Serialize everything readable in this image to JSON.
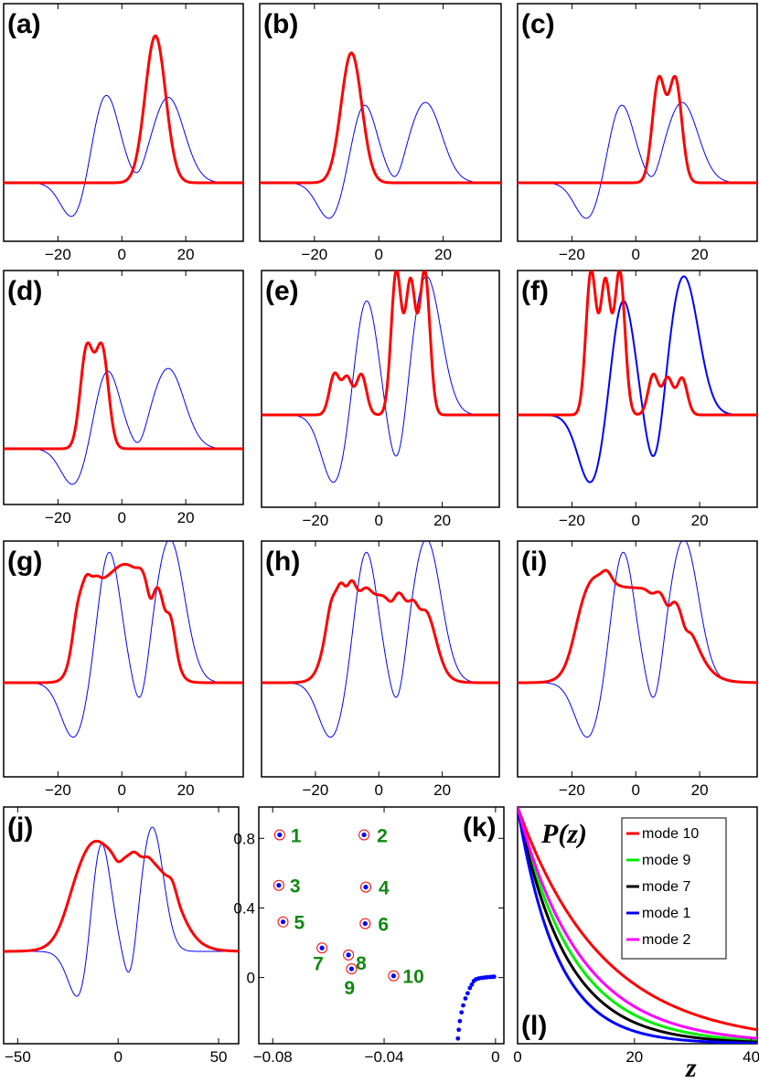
{
  "chart_data": [
    {
      "type": "line",
      "panel_label": "(a)",
      "xlim": [
        -37,
        38
      ],
      "xticks": [
        -20,
        0,
        20
      ],
      "tick_labels": [
        "−20",
        "0",
        "20"
      ],
      "series": [
        {
          "color": "#0000ff",
          "width": 1.0,
          "profile": "blue_a"
        },
        {
          "color": "#ff0000",
          "width": 3.0,
          "peaks": [
            [
              10.5,
              0.86,
              3.2
            ]
          ]
        }
      ],
      "ylim": [
        -0.3,
        1.0
      ]
    },
    {
      "type": "line",
      "panel_label": "(b)",
      "xlim": [
        -37,
        38
      ],
      "xticks": [
        -20,
        0,
        20
      ],
      "tick_labels": [
        "−20",
        "0",
        "20"
      ],
      "series": [
        {
          "color": "#0000ff",
          "width": 1.0,
          "profile": "blue_b"
        },
        {
          "color": "#ff0000",
          "width": 3.0,
          "peaks": [
            [
              -8.5,
              0.76,
              3.2
            ]
          ]
        }
      ],
      "ylim": [
        -0.3,
        1.0
      ]
    },
    {
      "type": "line",
      "panel_label": "(c)",
      "xlim": [
        -37,
        38
      ],
      "xticks": [
        -20,
        0,
        20
      ],
      "tick_labels": [
        "−20",
        "0",
        "20"
      ],
      "series": [
        {
          "color": "#0000ff",
          "width": 1.0,
          "profile": "blue_b"
        },
        {
          "color": "#ff0000",
          "width": 3.0,
          "peaks": [
            [
              7.2,
              0.6,
              2.0
            ],
            [
              12.4,
              0.6,
              2.0
            ]
          ]
        }
      ],
      "ylim": [
        -0.3,
        1.0
      ]
    },
    {
      "type": "line",
      "panel_label": "(d)",
      "xlim": [
        -37,
        38
      ],
      "xticks": [
        -20,
        0,
        20
      ],
      "tick_labels": [
        "−20",
        "0",
        "20"
      ],
      "series": [
        {
          "color": "#0000ff",
          "width": 1.0,
          "profile": "blue_b"
        },
        {
          "color": "#ff0000",
          "width": 3.0,
          "peaks": [
            [
              -11,
              0.58,
              2.0
            ],
            [
              -6.2,
              0.58,
              2.0
            ]
          ]
        }
      ],
      "ylim": [
        -0.3,
        1.0
      ]
    },
    {
      "type": "line",
      "panel_label": "(e)",
      "xlim": [
        -37,
        38
      ],
      "xticks": [
        -20,
        0,
        20
      ],
      "tick_labels": [
        "−20",
        "0",
        "20"
      ],
      "series": [
        {
          "color": "#0000ff",
          "width": 1.0,
          "profile": "blue_e"
        },
        {
          "color": "#ff0000",
          "width": 3.0,
          "peaks": [
            [
              5.5,
              0.78,
              1.6
            ],
            [
              10,
              0.72,
              1.6
            ],
            [
              14.5,
              0.78,
              1.6
            ],
            [
              -14,
              0.22,
              1.6
            ],
            [
              -10,
              0.2,
              1.6
            ],
            [
              -5.5,
              0.22,
              1.6
            ]
          ]
        }
      ],
      "ylim": [
        -0.3,
        1.0
      ]
    },
    {
      "type": "line",
      "panel_label": "(f)",
      "xlim": [
        -37,
        38
      ],
      "xticks": [
        -20,
        0,
        20
      ],
      "tick_labels": [
        "−20",
        "0",
        "20"
      ],
      "series": [
        {
          "color": "#0000ff",
          "width": 2.0,
          "profile": "blue_e"
        },
        {
          "color": "#ff0000",
          "width": 3.0,
          "peaks": [
            [
              -14,
              0.78,
              1.6
            ],
            [
              -9.5,
              0.72,
              1.6
            ],
            [
              -5,
              0.78,
              1.6
            ],
            [
              5.5,
              0.22,
              1.6
            ],
            [
              10,
              0.2,
              1.6
            ],
            [
              14.5,
              0.2,
              1.6
            ]
          ]
        }
      ],
      "ylim": [
        -0.3,
        1.0
      ]
    },
    {
      "type": "line",
      "panel_label": "(g)",
      "xlim": [
        -37,
        38
      ],
      "xticks": [
        -20,
        0,
        20
      ],
      "tick_labels": [
        "−20",
        "0",
        "20"
      ],
      "series": [
        {
          "color": "#0000ff",
          "width": 1.0,
          "profile": "blue_g"
        },
        {
          "color": "#ff0000",
          "width": 3.0,
          "profile": "red_g"
        }
      ],
      "ylim": [
        -0.3,
        1.0
      ]
    },
    {
      "type": "line",
      "panel_label": "(h)",
      "xlim": [
        -37,
        38
      ],
      "xticks": [
        -20,
        0,
        20
      ],
      "tick_labels": [
        "−20",
        "0",
        "20"
      ],
      "series": [
        {
          "color": "#0000ff",
          "width": 1.0,
          "profile": "blue_g"
        },
        {
          "color": "#ff0000",
          "width": 3.0,
          "profile": "red_h"
        }
      ],
      "ylim": [
        -0.3,
        1.0
      ]
    },
    {
      "type": "line",
      "panel_label": "(i)",
      "xlim": [
        -37,
        38
      ],
      "xticks": [
        -20,
        0,
        20
      ],
      "tick_labels": [
        "−20",
        "0",
        "20"
      ],
      "series": [
        {
          "color": "#0000ff",
          "width": 1.0,
          "profile": "blue_g"
        },
        {
          "color": "#ff0000",
          "width": 3.0,
          "profile": "red_i"
        }
      ],
      "ylim": [
        -0.3,
        1.0
      ]
    },
    {
      "type": "line",
      "panel_label": "(j)",
      "xlim": [
        -57,
        60
      ],
      "xticks": [
        -50,
        0,
        50
      ],
      "tick_labels": [
        "−50",
        "0",
        "50"
      ],
      "series": [
        {
          "color": "#0000ff",
          "width": 1.0,
          "profile": "blue_j"
        },
        {
          "color": "#ff0000",
          "width": 3.0,
          "profile": "red_j"
        }
      ],
      "ylim": [
        -0.3,
        1.0
      ]
    },
    {
      "type": "scatter",
      "panel_label": "(k)",
      "xlim": [
        -0.085,
        0.003
      ],
      "ylim": [
        -0.38,
        0.98
      ],
      "xticks": [
        -0.08,
        -0.04,
        0
      ],
      "xtick_labels": [
        "−0.08",
        "−0.04",
        "0"
      ],
      "yticks": [
        0,
        0.4,
        0.8
      ],
      "ytick_labels": [
        "0",
        "0.4",
        "0.8"
      ],
      "modes": [
        {
          "label": "1",
          "x": -0.0775,
          "y": 0.82
        },
        {
          "label": "2",
          "x": -0.0472,
          "y": 0.82
        },
        {
          "label": "3",
          "x": -0.0778,
          "y": 0.53
        },
        {
          "label": "4",
          "x": -0.0466,
          "y": 0.52
        },
        {
          "label": "5",
          "x": -0.0763,
          "y": 0.32
        },
        {
          "label": "6",
          "x": -0.0468,
          "y": 0.31
        },
        {
          "label": "7",
          "x": -0.0623,
          "y": 0.17
        },
        {
          "label": "8",
          "x": -0.0528,
          "y": 0.13
        },
        {
          "label": "9",
          "x": -0.0517,
          "y": 0.05
        },
        {
          "label": "10",
          "x": -0.0366,
          "y": 0.01
        }
      ],
      "continuum": [
        [
          -0.0135,
          -0.35
        ],
        [
          -0.0132,
          -0.3
        ],
        [
          -0.0128,
          -0.25
        ],
        [
          -0.0122,
          -0.2
        ],
        [
          -0.0116,
          -0.16
        ],
        [
          -0.0108,
          -0.12
        ],
        [
          -0.01,
          -0.09
        ],
        [
          -0.0092,
          -0.06
        ],
        [
          -0.0085,
          -0.04
        ],
        [
          -0.0078,
          -0.02
        ],
        [
          -0.007,
          -0.01
        ],
        [
          -0.006,
          -0.005
        ],
        [
          -0.005,
          -0.002
        ],
        [
          -0.004,
          0.0
        ],
        [
          -0.003,
          0.002
        ],
        [
          -0.002,
          0.003
        ],
        [
          -0.0012,
          0.004
        ],
        [
          -0.0005,
          0.005
        ]
      ]
    },
    {
      "type": "line",
      "panel_label": "(l)",
      "ylabel": "P(z)",
      "xlabel": "z",
      "xlim": [
        0,
        41
      ],
      "ylim": [
        0,
        1
      ],
      "xticks": [
        0,
        20,
        40
      ],
      "xtick_labels": [
        "0",
        "20",
        "40"
      ],
      "series": [
        {
          "name": "mode 10",
          "color": "#ff0000",
          "decay": 14.5
        },
        {
          "name": "mode 9",
          "color": "#00ee00",
          "decay": 9.5
        },
        {
          "name": "mode 7",
          "color": "#000000",
          "decay": 8.3
        },
        {
          "name": "mode 1",
          "color": "#0000ff",
          "decay": 6.8
        },
        {
          "name": "mode 2",
          "color": "#ff00ff",
          "decay": 10.8
        }
      ]
    }
  ]
}
